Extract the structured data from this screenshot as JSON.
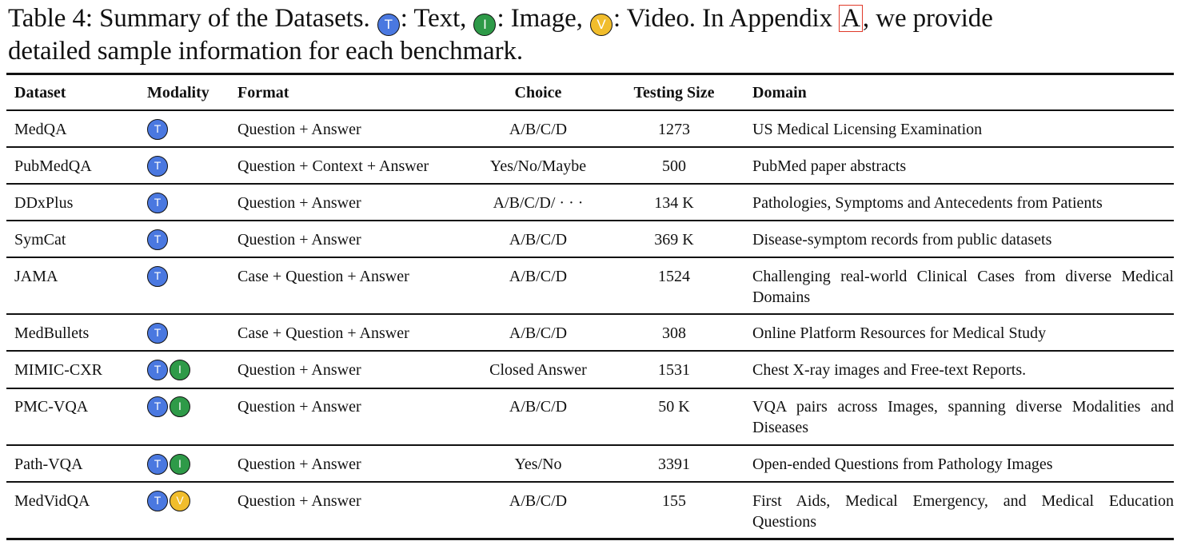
{
  "caption": {
    "prefix": "Table 4: Summary of the Datasets.",
    "text_badge": "T",
    "text_label": ": Text,",
    "image_badge": "I",
    "image_label": ": Image,",
    "video_badge": "V",
    "video_label": ": Video.",
    "appendix_pre": "In Appendix",
    "appendix_ref": "A",
    "appendix_post": ", we provide",
    "line2": "detailed sample information for each benchmark."
  },
  "colors": {
    "text_badge": "#4a78e0",
    "image_badge": "#2e9a48",
    "video_badge": "#f1bd2c",
    "ref_box": "#e03a2a"
  },
  "table": {
    "headers": {
      "dataset": "Dataset",
      "modality": "Modality",
      "format": "Format",
      "choice": "Choice",
      "size": "Testing Size",
      "domain": "Domain"
    },
    "rows": [
      {
        "dataset": "MedQA",
        "modality": [
          "T"
        ],
        "format": "Question + Answer",
        "choice": "A/B/C/D",
        "size": "1273",
        "domain": "US Medical Licensing Examination"
      },
      {
        "dataset": "PubMedQA",
        "modality": [
          "T"
        ],
        "format": "Question + Context + Answer",
        "choice": "Yes/No/Maybe",
        "size": "500",
        "domain": "PubMed paper abstracts"
      },
      {
        "dataset": "DDxPlus",
        "modality": [
          "T"
        ],
        "format": "Question + Answer",
        "choice": "A/B/C/D/ · · ·",
        "size": "134 K",
        "domain": "Pathologies, Symptoms and Antecedents from Patients"
      },
      {
        "dataset": "SymCat",
        "modality": [
          "T"
        ],
        "format": "Question + Answer",
        "choice": "A/B/C/D",
        "size": "369 K",
        "domain": "Disease-symptom records from public datasets"
      },
      {
        "dataset": "JAMA",
        "modality": [
          "T"
        ],
        "format": "Case + Question + Answer",
        "choice": "A/B/C/D",
        "size": "1524",
        "domain": "Challenging real-world Clinical Cases from diverse Medical Domains"
      },
      {
        "dataset": "MedBullets",
        "modality": [
          "T"
        ],
        "format": "Case + Question + Answer",
        "choice": "A/B/C/D",
        "size": "308",
        "domain": "Online Platform Resources for Medical Study"
      },
      {
        "dataset": "MIMIC-CXR",
        "modality": [
          "T",
          "I"
        ],
        "format": "Question + Answer",
        "choice": "Closed Answer",
        "size": "1531",
        "domain": "Chest X-ray images and Free-text Reports."
      },
      {
        "dataset": "PMC-VQA",
        "modality": [
          "T",
          "I"
        ],
        "format": "Question + Answer",
        "choice": "A/B/C/D",
        "size": "50 K",
        "domain": "VQA pairs across Images, spanning diverse Modalities and Diseases"
      },
      {
        "dataset": "Path-VQA",
        "modality": [
          "T",
          "I"
        ],
        "format": "Question + Answer",
        "choice": "Yes/No",
        "size": "3391",
        "domain": "Open-ended Questions from Pathology Images"
      },
      {
        "dataset": "MedVidQA",
        "modality": [
          "T",
          "V"
        ],
        "format": "Question + Answer",
        "choice": "A/B/C/D",
        "size": "155",
        "domain": "First Aids, Medical Emergency, and Medical Education Questions"
      }
    ]
  }
}
